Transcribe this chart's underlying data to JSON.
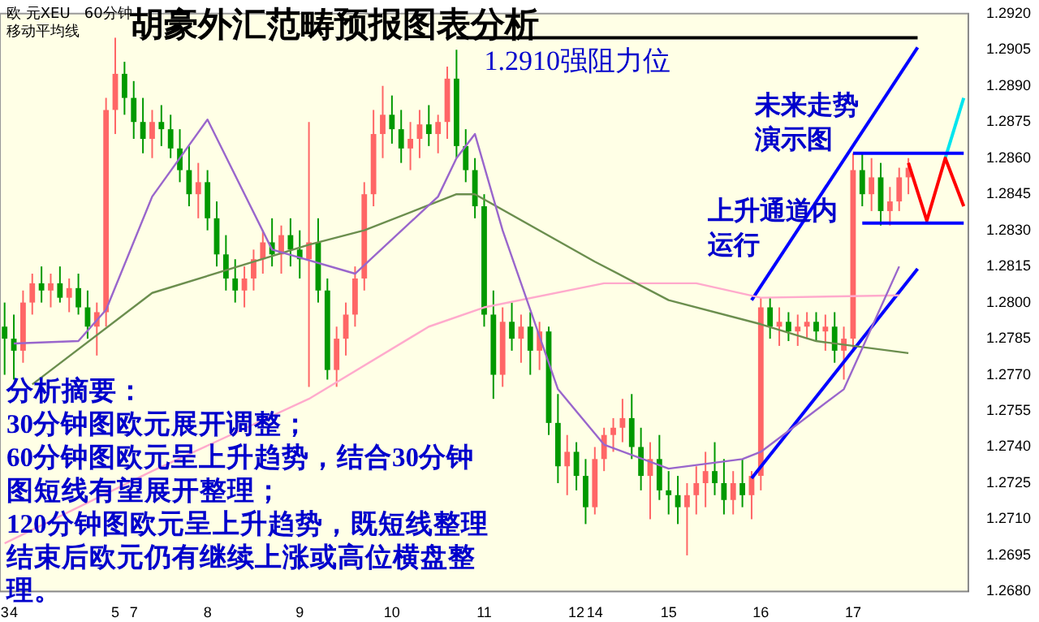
{
  "chart_data": {
    "type": "candlestick",
    "title": "胡豪外汇范畴预报图表分析",
    "annotations": [
      {
        "text": "1.2910强阻力位",
        "x": "11",
        "y": 1.291
      },
      "欧 元XEU   60分钟",
      "移动平均线",
      "未来走势演示图",
      "上升通道内运行",
      "分析摘要：",
      "30分钟图欧元展开调整；",
      "60分钟图欧元呈上升趋势，结合30分钟图短线有望展开整理；",
      "120分钟图欧元呈上升趋势，既短线整理结束后欧元仍有继续上涨或高位横盘整理。"
    ],
    "categories": [
      "3",
      "4",
      null,
      null,
      null,
      null,
      null,
      null,
      null,
      null,
      null,
      null,
      "5",
      null,
      "7",
      null,
      null,
      null,
      null,
      null,
      null,
      null,
      "8",
      null,
      null,
      null,
      null,
      null,
      null,
      null,
      null,
      null,
      "9",
      null,
      null,
      null,
      null,
      null,
      null,
      null,
      null,
      null,
      "10",
      null,
      null,
      null,
      null,
      null,
      null,
      null,
      null,
      null,
      "11",
      null,
      null,
      null,
      null,
      null,
      null,
      null,
      null,
      null,
      "12",
      null,
      "14",
      null,
      null,
      null,
      null,
      null,
      null,
      null,
      "15",
      null,
      null,
      null,
      null,
      null,
      null,
      null,
      null,
      null,
      "16",
      null,
      null,
      null,
      null,
      null,
      null,
      null,
      null,
      null,
      "17",
      null,
      null,
      null,
      null,
      null,
      null,
      null,
      null,
      null,
      null,
      null,
      null
    ],
    "ohlc": [
      [
        1.279,
        1.28,
        1.277,
        1.2785
      ],
      [
        1.2785,
        1.2795,
        1.2768,
        1.278
      ],
      [
        1.278,
        1.2805,
        1.2775,
        1.28
      ],
      [
        1.28,
        1.2812,
        1.2795,
        1.2808
      ],
      [
        1.2808,
        1.2815,
        1.28,
        1.2805
      ],
      [
        1.2805,
        1.2812,
        1.2798,
        1.2808
      ],
      [
        1.2808,
        1.2815,
        1.28,
        1.2802
      ],
      [
        1.2802,
        1.281,
        1.2796,
        1.2806
      ],
      [
        1.2806,
        1.2812,
        1.2795,
        1.2798
      ],
      [
        1.2798,
        1.2805,
        1.2785,
        1.279
      ],
      [
        1.279,
        1.28,
        1.2778,
        1.2796
      ],
      [
        1.2796,
        1.2885,
        1.279,
        1.288
      ],
      [
        1.288,
        1.291,
        1.287,
        1.2895
      ],
      [
        1.2895,
        1.29,
        1.2878,
        1.2885
      ],
      [
        1.2885,
        1.2892,
        1.2868,
        1.2875
      ],
      [
        1.2875,
        1.2885,
        1.2862,
        1.2868
      ],
      [
        1.2868,
        1.288,
        1.286,
        1.2875
      ],
      [
        1.2875,
        1.2882,
        1.2865,
        1.2872
      ],
      [
        1.2872,
        1.2878,
        1.286,
        1.2864
      ],
      [
        1.2864,
        1.2872,
        1.285,
        1.2855
      ],
      [
        1.2855,
        1.2865,
        1.284,
        1.2845
      ],
      [
        1.2845,
        1.2858,
        1.2835,
        1.285
      ],
      [
        1.285,
        1.2855,
        1.283,
        1.2835
      ],
      [
        1.2835,
        1.2842,
        1.2815,
        1.282
      ],
      [
        1.282,
        1.2828,
        1.2805,
        1.281
      ],
      [
        1.281,
        1.2818,
        1.28,
        1.2805
      ],
      [
        1.2805,
        1.2815,
        1.2798,
        1.281
      ],
      [
        1.281,
        1.2822,
        1.2805,
        1.2818
      ],
      [
        1.2818,
        1.283,
        1.2812,
        1.2825
      ],
      [
        1.2825,
        1.2835,
        1.2815,
        1.282
      ],
      [
        1.282,
        1.2832,
        1.2812,
        1.2828
      ],
      [
        1.2828,
        1.2835,
        1.2815,
        1.2822
      ],
      [
        1.2822,
        1.283,
        1.281,
        1.2818
      ],
      [
        1.2818,
        1.2875,
        1.2765,
        1.2825
      ],
      [
        1.2825,
        1.2835,
        1.28,
        1.2805
      ],
      [
        1.2805,
        1.281,
        1.2768,
        1.2772
      ],
      [
        1.2772,
        1.279,
        1.2765,
        1.2785
      ],
      [
        1.2785,
        1.28,
        1.2778,
        1.2795
      ],
      [
        1.2795,
        1.2815,
        1.279,
        1.281
      ],
      [
        1.281,
        1.285,
        1.2805,
        1.2845
      ],
      [
        1.2845,
        1.288,
        1.284,
        1.287
      ],
      [
        1.287,
        1.289,
        1.286,
        1.2878
      ],
      [
        1.2878,
        1.2886,
        1.2866,
        1.2872
      ],
      [
        1.2872,
        1.288,
        1.2858,
        1.2864
      ],
      [
        1.2864,
        1.2875,
        1.2855,
        1.2868
      ],
      [
        1.2868,
        1.288,
        1.286,
        1.2874
      ],
      [
        1.2874,
        1.2882,
        1.2865,
        1.287
      ],
      [
        1.287,
        1.2878,
        1.2862,
        1.2875
      ],
      [
        1.2875,
        1.2898,
        1.2868,
        1.2893
      ],
      [
        1.2893,
        1.2905,
        1.286,
        1.2865
      ],
      [
        1.2865,
        1.2872,
        1.285,
        1.2855
      ],
      [
        1.2855,
        1.286,
        1.2835,
        1.284
      ],
      [
        1.284,
        1.2845,
        1.279,
        1.2795
      ],
      [
        1.2795,
        1.2805,
        1.276,
        1.277
      ],
      [
        1.277,
        1.2798,
        1.2765,
        1.2792
      ],
      [
        1.2792,
        1.28,
        1.278,
        1.2785
      ],
      [
        1.2785,
        1.2795,
        1.2775,
        1.279
      ],
      [
        1.279,
        1.2796,
        1.277,
        1.278
      ],
      [
        1.278,
        1.2792,
        1.2772,
        1.2788
      ],
      [
        1.2788,
        1.279,
        1.2745,
        1.275
      ],
      [
        1.275,
        1.2762,
        1.2725,
        1.2732
      ],
      [
        1.2732,
        1.2745,
        1.272,
        1.2738
      ],
      [
        1.2738,
        1.2742,
        1.2722,
        1.2728
      ],
      [
        1.2728,
        1.2735,
        1.2708,
        1.2715
      ],
      [
        1.2715,
        1.274,
        1.2712,
        1.2735
      ],
      [
        1.2735,
        1.2748,
        1.273,
        1.2745
      ],
      [
        1.2745,
        1.2752,
        1.2738,
        1.2748
      ],
      [
        1.2748,
        1.276,
        1.2742,
        1.2752
      ],
      [
        1.2752,
        1.2762,
        1.2735,
        1.274
      ],
      [
        1.274,
        1.2748,
        1.2722,
        1.2728
      ],
      [
        1.2728,
        1.2742,
        1.271,
        1.2735
      ],
      [
        1.2735,
        1.2745,
        1.2718,
        1.2722
      ],
      [
        1.2722,
        1.273,
        1.2712,
        1.272
      ],
      [
        1.272,
        1.2728,
        1.2708,
        1.2715
      ],
      [
        1.2715,
        1.2725,
        1.2695,
        1.272
      ],
      [
        1.272,
        1.2732,
        1.2712,
        1.2725
      ],
      [
        1.2725,
        1.2738,
        1.2715,
        1.273
      ],
      [
        1.273,
        1.2742,
        1.272,
        1.2725
      ],
      [
        1.2725,
        1.2735,
        1.2712,
        1.2718
      ],
      [
        1.2718,
        1.273,
        1.2712,
        1.2725
      ],
      [
        1.2725,
        1.2735,
        1.2715,
        1.272
      ],
      [
        1.272,
        1.273,
        1.271,
        1.2728
      ],
      [
        1.2728,
        1.2802,
        1.2722,
        1.2798
      ],
      [
        1.2798,
        1.2802,
        1.2785,
        1.279
      ],
      [
        1.279,
        1.2798,
        1.2782,
        1.2792
      ],
      [
        1.2792,
        1.2796,
        1.2784,
        1.2788
      ],
      [
        1.2788,
        1.2795,
        1.2782,
        1.279
      ],
      [
        1.279,
        1.2796,
        1.2785,
        1.2792
      ],
      [
        1.2792,
        1.2796,
        1.2784,
        1.2788
      ],
      [
        1.2788,
        1.2795,
        1.278,
        1.279
      ],
      [
        1.279,
        1.2796,
        1.2775,
        1.278
      ],
      [
        1.278,
        1.279,
        1.2768,
        1.2785
      ],
      [
        1.2785,
        1.2862,
        1.278,
        1.2855
      ],
      [
        1.2855,
        1.2862,
        1.284,
        1.2845
      ],
      [
        1.2845,
        1.286,
        1.2838,
        1.2852
      ],
      [
        1.2852,
        1.2858,
        1.2832,
        1.2838
      ],
      [
        1.2838,
        1.2848,
        1.2832,
        1.2842
      ],
      [
        1.2842,
        1.2856,
        1.2838,
        1.2852
      ],
      [
        1.2852,
        1.286,
        1.2845,
        1.2856
      ],
      null,
      null,
      null,
      null,
      null,
      null
    ],
    "series": [
      {
        "type": "line",
        "color": "#9966cc",
        "values": [
          null,
          1.2783,
          null,
          null,
          null,
          null,
          null,
          null,
          1.2784,
          null,
          null,
          1.2797,
          null,
          null,
          null,
          null,
          1.2844,
          null,
          null,
          null,
          null,
          null,
          1.2876,
          null,
          null,
          null,
          null,
          null,
          null,
          1.2822,
          null,
          null,
          null,
          null,
          null,
          null,
          null,
          null,
          1.2812,
          null,
          null,
          null,
          null,
          null,
          null,
          null,
          null,
          1.2844,
          null,
          1.286,
          null,
          1.287,
          null,
          null,
          1.283,
          null,
          null,
          null,
          null,
          null,
          1.2764,
          null,
          null,
          null,
          null,
          1.2741,
          null,
          null,
          null,
          null,
          null,
          null,
          1.2731,
          null,
          null,
          null,
          null,
          null,
          null,
          null,
          1.2735,
          null,
          1.2738,
          null,
          null,
          null,
          null,
          null,
          null,
          null,
          null,
          1.2764,
          null,
          null,
          null,
          null,
          null,
          1.2815,
          null,
          null,
          null,
          null,
          null,
          null,
          null
        ]
      },
      {
        "type": "line",
        "color": "#6b8e4e",
        "values": [
          null,
          null,
          null,
          1.2766,
          null,
          null,
          null,
          null,
          null,
          null,
          null,
          null,
          null,
          null,
          null,
          null,
          1.2804,
          null,
          null,
          null,
          null,
          null,
          null,
          null,
          null,
          null,
          null,
          null,
          null,
          null,
          null,
          null,
          null,
          1.2824,
          null,
          null,
          null,
          null,
          null,
          1.283,
          null,
          null,
          null,
          null,
          null,
          null,
          null,
          null,
          null,
          1.2845,
          null,
          1.2845,
          null,
          null,
          null,
          null,
          null,
          null,
          null,
          null,
          null,
          null,
          null,
          null,
          1.2817,
          null,
          null,
          null,
          null,
          null,
          null,
          null,
          1.2801,
          null,
          null,
          null,
          null,
          null,
          null,
          null,
          null,
          null,
          1.2791,
          null,
          null,
          null,
          null,
          null,
          1.2784,
          null,
          null,
          null,
          null,
          null,
          null,
          null,
          null,
          null,
          1.2779,
          null,
          null,
          null,
          null,
          null,
          null
        ]
      },
      {
        "type": "line",
        "color": "#ffaacc",
        "values": [
          1.27,
          null,
          null,
          null,
          null,
          null,
          null,
          null,
          null,
          null,
          null,
          null,
          null,
          null,
          null,
          null,
          1.273,
          null,
          null,
          null,
          null,
          null,
          null,
          null,
          null,
          null,
          null,
          null,
          null,
          null,
          null,
          null,
          null,
          1.276,
          null,
          null,
          null,
          null,
          null,
          null,
          null,
          null,
          null,
          null,
          null,
          null,
          1.279,
          null,
          null,
          null,
          null,
          null,
          1.2798,
          null,
          null,
          null,
          null,
          null,
          null,
          null,
          null,
          null,
          null,
          null,
          null,
          1.2808,
          null,
          null,
          null,
          null,
          null,
          null,
          null,
          null,
          null,
          1.2808,
          null,
          null,
          null,
          null,
          null,
          null,
          1.2802,
          null,
          null,
          null,
          null,
          null,
          null,
          null,
          null,
          null,
          null,
          null,
          null,
          null,
          null,
          1.2803,
          null,
          null,
          null,
          null,
          null,
          null,
          null
        ]
      },
      {
        "type": "line",
        "color": "#0000ff",
        "values": [
          null,
          null,
          null,
          null,
          null,
          null,
          null,
          null,
          null,
          null,
          null,
          null,
          null,
          null,
          null,
          null,
          null,
          null,
          null,
          null,
          null,
          null,
          null,
          null,
          null,
          null,
          null,
          null,
          null,
          null,
          null,
          null,
          null,
          null,
          null,
          null,
          null,
          null,
          null,
          null,
          null,
          null,
          null,
          null,
          null,
          null,
          null,
          null,
          null,
          null,
          null,
          null,
          null,
          null,
          null,
          null,
          null,
          null,
          null,
          null,
          null,
          null,
          null,
          null,
          null,
          null,
          null,
          null,
          null,
          null,
          null,
          null,
          null,
          null,
          null,
          null,
          null,
          null,
          null,
          null,
          null,
          1.2801,
          null,
          null,
          null,
          null,
          null,
          null,
          null,
          null,
          null,
          null,
          null,
          null,
          null,
          null,
          null,
          null,
          null,
          1.2906,
          null,
          null,
          null,
          null,
          null
        ]
      },
      {
        "type": "line",
        "color": "#0000ff",
        "values": [
          null,
          null,
          null,
          null,
          null,
          null,
          null,
          null,
          null,
          null,
          null,
          null,
          null,
          null,
          null,
          null,
          null,
          null,
          null,
          null,
          null,
          null,
          null,
          null,
          null,
          null,
          null,
          null,
          null,
          null,
          null,
          null,
          null,
          null,
          null,
          null,
          null,
          null,
          null,
          null,
          null,
          null,
          null,
          null,
          null,
          null,
          null,
          null,
          null,
          null,
          null,
          null,
          null,
          null,
          null,
          null,
          null,
          null,
          null,
          null,
          null,
          null,
          null,
          null,
          null,
          null,
          null,
          null,
          null,
          null,
          null,
          null,
          null,
          null,
          null,
          null,
          null,
          null,
          null,
          null,
          null,
          1.2727,
          null,
          null,
          null,
          null,
          null,
          null,
          null,
          null,
          null,
          null,
          null,
          null,
          null,
          null,
          null,
          null,
          null,
          1.2814,
          null,
          null,
          null,
          null,
          null
        ]
      },
      {
        "type": "line",
        "color": "#000000",
        "values": [
          null,
          null,
          null,
          null,
          null,
          null,
          null,
          null,
          null,
          null,
          null,
          null,
          null,
          null,
          null,
          null,
          null,
          null,
          null,
          null,
          null,
          null,
          null,
          null,
          null,
          null,
          null,
          null,
          null,
          null,
          null,
          null,
          null,
          null,
          null,
          null,
          null,
          null,
          null,
          null,
          null,
          null,
          null,
          null,
          null,
          null,
          null,
          null,
          null,
          1.291,
          null,
          null,
          null,
          null,
          null,
          null,
          null,
          null,
          null,
          null,
          null,
          null,
          null,
          null,
          null,
          null,
          null,
          null,
          null,
          null,
          null,
          null,
          null,
          null,
          null,
          null,
          null,
          null,
          null,
          null,
          null,
          null,
          null,
          null,
          null,
          null,
          null,
          null,
          null,
          null,
          null,
          null,
          null,
          null,
          null,
          null,
          null,
          null,
          null,
          1.291,
          null,
          null,
          null,
          null,
          null
        ]
      },
      {
        "type": "line",
        "color": "#0000ff",
        "values": [
          null,
          null,
          null,
          null,
          null,
          null,
          null,
          null,
          null,
          null,
          null,
          null,
          null,
          null,
          null,
          null,
          null,
          null,
          null,
          null,
          null,
          null,
          null,
          null,
          null,
          null,
          null,
          null,
          null,
          null,
          null,
          null,
          null,
          null,
          null,
          null,
          null,
          null,
          null,
          null,
          null,
          null,
          null,
          null,
          null,
          null,
          null,
          null,
          null,
          null,
          null,
          null,
          null,
          null,
          null,
          null,
          null,
          null,
          null,
          null,
          null,
          null,
          null,
          null,
          null,
          null,
          null,
          null,
          null,
          null,
          null,
          null,
          null,
          null,
          null,
          null,
          null,
          null,
          null,
          null,
          null,
          null,
          null,
          null,
          null,
          null,
          null,
          null,
          null,
          null,
          null,
          null,
          1.2862,
          null,
          null,
          null,
          null,
          null,
          null,
          null,
          null,
          null,
          null,
          null,
          1.2862
        ]
      },
      {
        "type": "line",
        "color": "#0000ff",
        "values": [
          null,
          null,
          null,
          null,
          null,
          null,
          null,
          null,
          null,
          null,
          null,
          null,
          null,
          null,
          null,
          null,
          null,
          null,
          null,
          null,
          null,
          null,
          null,
          null,
          null,
          null,
          null,
          null,
          null,
          null,
          null,
          null,
          null,
          null,
          null,
          null,
          null,
          null,
          null,
          null,
          null,
          null,
          null,
          null,
          null,
          null,
          null,
          null,
          null,
          null,
          null,
          null,
          null,
          null,
          null,
          null,
          null,
          null,
          null,
          null,
          null,
          null,
          null,
          null,
          null,
          null,
          null,
          null,
          null,
          null,
          null,
          null,
          null,
          null,
          null,
          null,
          null,
          null,
          null,
          null,
          null,
          null,
          null,
          null,
          null,
          null,
          null,
          null,
          null,
          null,
          null,
          null,
          null,
          1.2833,
          null,
          null,
          null,
          null,
          null,
          null,
          null,
          null,
          null,
          null,
          1.2833
        ]
      },
      {
        "type": "line",
        "color": "#ff0000",
        "values": [
          null,
          null,
          null,
          null,
          null,
          null,
          null,
          null,
          null,
          null,
          null,
          null,
          null,
          null,
          null,
          null,
          null,
          null,
          null,
          null,
          null,
          null,
          null,
          null,
          null,
          null,
          null,
          null,
          null,
          null,
          null,
          null,
          null,
          null,
          null,
          null,
          null,
          null,
          null,
          null,
          null,
          null,
          null,
          null,
          null,
          null,
          null,
          null,
          null,
          null,
          null,
          null,
          null,
          null,
          null,
          null,
          null,
          null,
          null,
          null,
          null,
          null,
          null,
          null,
          null,
          null,
          null,
          null,
          null,
          null,
          null,
          null,
          null,
          null,
          null,
          null,
          null,
          null,
          null,
          null,
          null,
          null,
          null,
          null,
          null,
          null,
          null,
          null,
          null,
          null,
          null,
          null,
          null,
          null,
          null,
          null,
          null,
          null,
          1.2858,
          null,
          1.2834,
          null,
          1.286,
          null,
          1.284
        ]
      },
      {
        "type": "line",
        "color": "#00e5ee",
        "values": [
          null,
          null,
          null,
          null,
          null,
          null,
          null,
          null,
          null,
          null,
          null,
          null,
          null,
          null,
          null,
          null,
          null,
          null,
          null,
          null,
          null,
          null,
          null,
          null,
          null,
          null,
          null,
          null,
          null,
          null,
          null,
          null,
          null,
          null,
          null,
          null,
          null,
          null,
          null,
          null,
          null,
          null,
          null,
          null,
          null,
          null,
          null,
          null,
          null,
          null,
          null,
          null,
          null,
          null,
          null,
          null,
          null,
          null,
          null,
          null,
          null,
          null,
          null,
          null,
          null,
          null,
          null,
          null,
          null,
          null,
          null,
          null,
          null,
          null,
          null,
          null,
          null,
          null,
          null,
          null,
          null,
          null,
          null,
          null,
          null,
          null,
          null,
          null,
          null,
          null,
          null,
          null,
          null,
          null,
          null,
          null,
          null,
          null,
          null,
          null,
          null,
          null,
          1.286,
          null,
          1.2885
        ]
      }
    ],
    "ylim": [
      1.268,
      1.292
    ],
    "yticks": [
      {
        "value": 1.268,
        "label": "1.2680"
      },
      {
        "value": 1.2695,
        "label": "1.2695"
      },
      {
        "value": 1.271,
        "label": "1.2710"
      },
      {
        "value": 1.2725,
        "label": "1.2725"
      },
      {
        "value": 1.274,
        "label": "1.2740"
      },
      {
        "value": 1.2755,
        "label": "1.2755"
      },
      {
        "value": 1.277,
        "label": "1.2770"
      },
      {
        "value": 1.2785,
        "label": "1.2785"
      },
      {
        "value": 1.28,
        "label": "1.2800"
      },
      {
        "value": 1.2815,
        "label": "1.2815"
      },
      {
        "value": 1.283,
        "label": "1.2830"
      },
      {
        "value": 1.2845,
        "label": "1.2845"
      },
      {
        "value": 1.286,
        "label": "1.2860"
      },
      {
        "value": 1.2875,
        "label": "1.2875"
      },
      {
        "value": 1.289,
        "label": "1.2890"
      },
      {
        "value": 1.2905,
        "label": "1.2905"
      },
      {
        "value": 1.292,
        "label": "1.2920"
      }
    ],
    "grid": false,
    "legend": false,
    "marker": "none"
  }
}
